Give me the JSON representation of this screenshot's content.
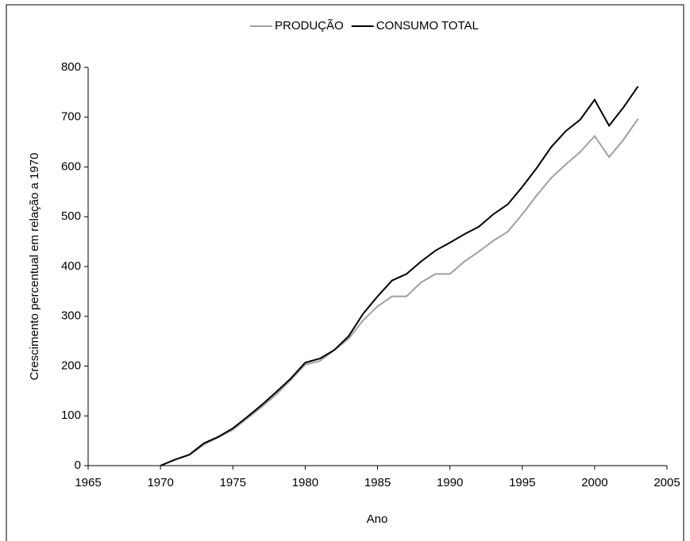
{
  "chart_data": {
    "type": "line",
    "x_label": "Ano",
    "y_label": "Crescimento percentual em relação a 1970",
    "x": [
      1970,
      1971,
      1972,
      1973,
      1974,
      1975,
      1976,
      1977,
      1978,
      1979,
      1980,
      1981,
      1982,
      1983,
      1984,
      1985,
      1986,
      1987,
      1988,
      1989,
      1990,
      1991,
      1992,
      1993,
      1994,
      1995,
      1996,
      1997,
      1998,
      1999,
      2000,
      2001,
      2002,
      2003
    ],
    "series": [
      {
        "name": "PRODUÇÃO",
        "color": "#a0a0a0",
        "values": [
          0,
          12,
          22,
          42,
          57,
          72,
          95,
          118,
          143,
          172,
          203,
          210,
          232,
          255,
          292,
          320,
          340,
          340,
          368,
          385,
          385,
          410,
          430,
          452,
          470,
          505,
          543,
          578,
          605,
          630,
          662,
          620,
          655,
          697
        ]
      },
      {
        "name": "CONSUMO TOTAL",
        "color": "#000000",
        "values": [
          0,
          12,
          22,
          45,
          58,
          75,
          98,
          122,
          148,
          175,
          207,
          215,
          232,
          260,
          305,
          340,
          372,
          385,
          410,
          432,
          448,
          465,
          480,
          505,
          525,
          560,
          598,
          640,
          672,
          695,
          735,
          683,
          720,
          762
        ]
      }
    ],
    "xlim": [
      1965,
      2005
    ],
    "xticks": [
      1965,
      1970,
      1975,
      1980,
      1985,
      1990,
      1995,
      2000,
      2005
    ],
    "ylim": [
      0,
      800
    ],
    "yticks": [
      0,
      100,
      200,
      300,
      400,
      500,
      600,
      700,
      800
    ],
    "legend": "top"
  }
}
